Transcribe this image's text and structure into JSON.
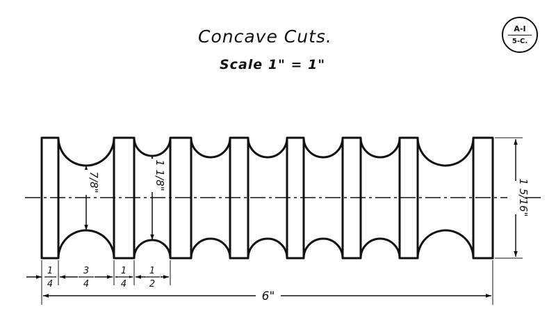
{
  "drawing": {
    "title": "Concave Cuts.",
    "scale": "Scale 1\" = 1\"",
    "sheet_badge": {
      "top": "A-I",
      "bottom": "5-C."
    }
  },
  "dimensions": {
    "collar_width": {
      "num": "1",
      "den": "4"
    },
    "wide_groove": {
      "num": "3",
      "den": "4"
    },
    "collar_width_2": {
      "num": "1",
      "den": "4"
    },
    "narrow_groove": {
      "num": "1",
      "den": "2"
    },
    "overall_length": "6\"",
    "wide_groove_depth": "7/8\"",
    "narrow_groove_depth": "1 1/8\"",
    "overall_height": "1 5/16\""
  }
}
